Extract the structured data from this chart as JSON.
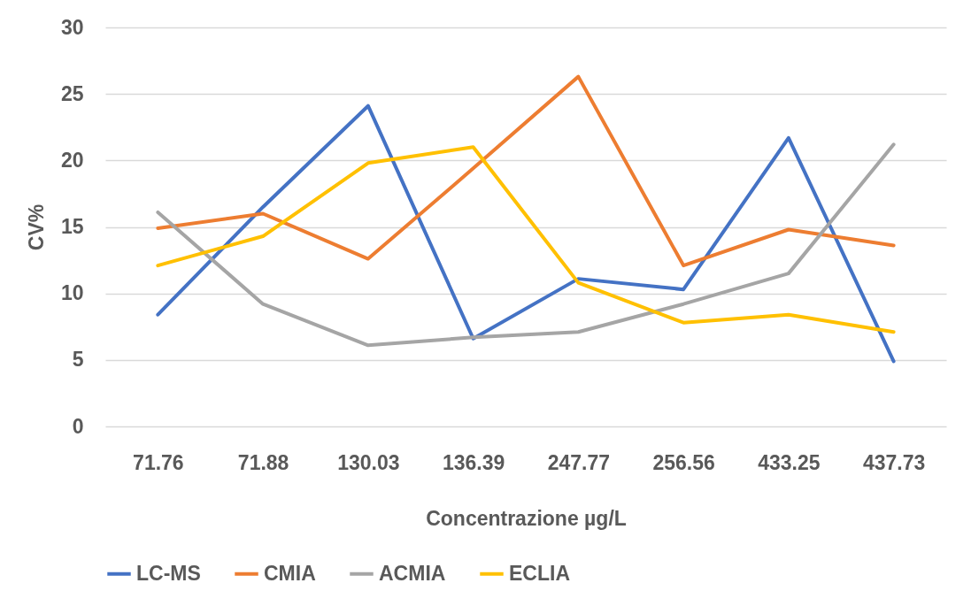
{
  "chart_data": {
    "type": "line",
    "xlabel": "Concentrazione µg/L",
    "ylabel": "CV%",
    "categories": [
      "71.76",
      "71.88",
      "130.03",
      "136.39",
      "247.77",
      "256.56",
      "433.25",
      "437.73"
    ],
    "series": [
      {
        "name": "LC-MS",
        "color": "#4472c4",
        "values": [
          8.4,
          16.5,
          24.1,
          6.6,
          11.1,
          10.3,
          21.7,
          4.9
        ]
      },
      {
        "name": "CMIA",
        "color": "#ed7d31",
        "values": [
          14.9,
          16.0,
          12.6,
          19.4,
          26.3,
          12.1,
          14.8,
          13.6
        ]
      },
      {
        "name": "ACMIA",
        "color": "#a5a5a5",
        "values": [
          16.1,
          9.2,
          6.1,
          6.7,
          7.1,
          9.2,
          11.5,
          21.2
        ]
      },
      {
        "name": "ECLIA",
        "color": "#ffc000",
        "values": [
          12.1,
          14.3,
          19.8,
          21.0,
          10.8,
          7.8,
          8.4,
          7.1
        ]
      }
    ],
    "ylim": [
      0,
      30
    ],
    "yticks": [
      0,
      5,
      10,
      15,
      20,
      25,
      30
    ],
    "grid": "y",
    "legend": "bottom",
    "marker": "none",
    "line_style": "solid"
  }
}
